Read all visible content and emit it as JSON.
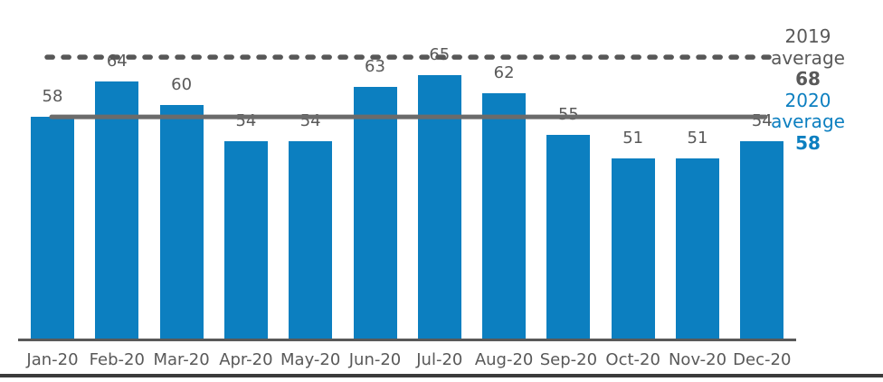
{
  "chart_data": {
    "type": "bar",
    "title": "",
    "categories": [
      "Jan-20",
      "Feb-20",
      "Mar-20",
      "Apr-20",
      "May-20",
      "Jun-20",
      "Jul-20",
      "Aug-20",
      "Sep-20",
      "Oct-20",
      "Nov-20",
      "Dec-20"
    ],
    "values": [
      58,
      64,
      60,
      54,
      54,
      63,
      65,
      62,
      55,
      51,
      51,
      54
    ],
    "bar_color": "#0c7fc0",
    "value_label_color": "#595959",
    "category_label_color": "#595959",
    "grid": false,
    "value_axis": {
      "visible": false,
      "implied_min": 21,
      "implied_max": 70
    },
    "reference_lines": [
      {
        "name": "2019 average",
        "value": 68,
        "style": "dashed",
        "color": "#575757"
      },
      {
        "name": "2020 average",
        "value": 58,
        "style": "solid",
        "color": "#6b6b6b"
      }
    ],
    "legend_position": "right",
    "legend_lines": [
      {
        "text": "2019",
        "color": "#595959",
        "bold": false
      },
      {
        "text": "average",
        "color": "#595959",
        "bold": false
      },
      {
        "text": "68",
        "color": "#595959",
        "bold": true
      },
      {
        "text": "2020",
        "color": "#0c7fc0",
        "bold": false
      },
      {
        "text": "average",
        "color": "#0c7fc0",
        "bold": false
      },
      {
        "text": "58",
        "color": "#0c7fc0",
        "bold": true
      }
    ]
  },
  "colors": {
    "background": "#ffffff",
    "axis_line": "#595959",
    "bottom_border": "#3b3b3b"
  }
}
